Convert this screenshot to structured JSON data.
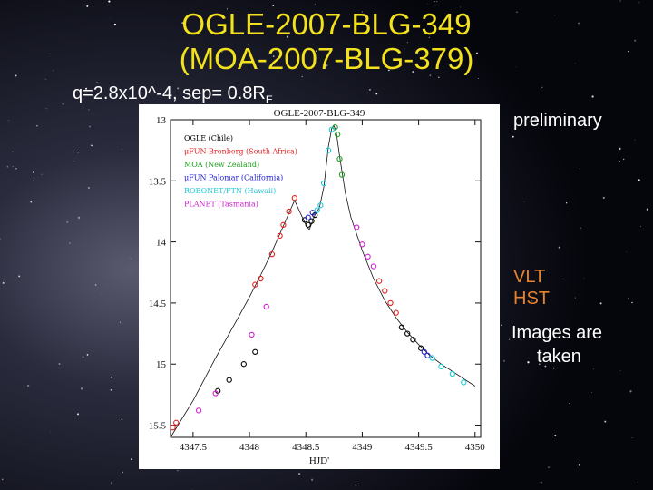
{
  "slide": {
    "title_line1": "OGLE-2007-BLG-349",
    "title_line2": "(MOA-2007-BLG-379)",
    "params_prefix": "q=2.8x10^-4,   sep= 0.8R",
    "params_sub": "E",
    "preliminary": "preliminary",
    "vlt": "VLT",
    "hst": "HST",
    "images_line1": "Images are",
    "images_line2": "taken",
    "title_color": "#f2e11c",
    "note_color": "#e8822c"
  },
  "chart_data": {
    "type": "scatter",
    "title": "OGLE-2007-BLG-349",
    "xlabel": "HJD'",
    "ylabel": "",
    "xlim": [
      4347.3,
      4350.05
    ],
    "ylim": [
      15.6,
      13.0
    ],
    "y_inverted": true,
    "x_ticks": [
      "4347.5",
      "4348",
      "4348.5",
      "4349",
      "4349.5",
      "4350"
    ],
    "y_ticks": [
      "13",
      "13.5",
      "14",
      "14.5",
      "15",
      "15.5"
    ],
    "legend": [
      {
        "name": "OGLE (Chile)",
        "color": "#000000"
      },
      {
        "name": "μFUN Bronberg (South Africa)",
        "color": "#e02020"
      },
      {
        "name": "MOA (New Zealand)",
        "color": "#20a020"
      },
      {
        "name": "μFUN Palomar (California)",
        "color": "#2020d0"
      },
      {
        "name": "ROBONET/FTN (Hawaii)",
        "color": "#20c8d8"
      },
      {
        "name": "PLANET (Tasmania)",
        "color": "#d020d0"
      }
    ],
    "model_curve": {
      "x": [
        4347.3,
        4347.5,
        4347.7,
        4347.9,
        4348.0,
        4348.1,
        4348.2,
        4348.3,
        4348.4,
        4348.5,
        4348.53,
        4348.58,
        4348.62,
        4348.66,
        4348.7,
        4348.73,
        4348.75,
        4348.77,
        4348.8,
        4348.85,
        4348.9,
        4349.0,
        4349.1,
        4349.2,
        4349.3,
        4349.4,
        4349.5,
        4349.6,
        4349.7,
        4349.8,
        4349.9,
        4350.0
      ],
      "y": [
        15.6,
        15.3,
        14.95,
        14.62,
        14.45,
        14.27,
        14.08,
        13.87,
        13.66,
        13.86,
        13.9,
        13.78,
        13.72,
        13.55,
        13.22,
        13.07,
        13.05,
        13.1,
        13.3,
        13.6,
        13.8,
        14.07,
        14.3,
        14.48,
        14.62,
        14.74,
        14.84,
        14.93,
        15.0,
        15.06,
        15.12,
        15.18
      ]
    },
    "series": [
      {
        "name": "OGLE (Chile)",
        "color": "#000000",
        "points": [
          [
            4347.72,
            15.22
          ],
          [
            4347.82,
            15.13
          ],
          [
            4347.95,
            15.0
          ],
          [
            4348.05,
            14.9
          ],
          [
            4348.49,
            13.82
          ],
          [
            4348.52,
            13.86
          ],
          [
            4348.55,
            13.83
          ],
          [
            4348.58,
            13.78
          ],
          [
            4349.35,
            14.7
          ],
          [
            4349.4,
            14.75
          ],
          [
            4349.45,
            14.8
          ],
          [
            4349.52,
            14.87
          ]
        ]
      },
      {
        "name": "μFUN Bronberg (South Africa)",
        "color": "#e02020",
        "points": [
          [
            4347.32,
            15.52
          ],
          [
            4347.35,
            15.48
          ],
          [
            4348.05,
            14.35
          ],
          [
            4348.1,
            14.3
          ],
          [
            4348.2,
            14.1
          ],
          [
            4348.27,
            13.95
          ],
          [
            4348.3,
            13.86
          ],
          [
            4348.35,
            13.75
          ],
          [
            4348.4,
            13.64
          ],
          [
            4349.15,
            14.32
          ],
          [
            4349.2,
            14.4
          ],
          [
            4349.25,
            14.5
          ],
          [
            4349.3,
            14.58
          ]
        ]
      },
      {
        "name": "MOA (New Zealand)",
        "color": "#20a020",
        "points": [
          [
            4348.76,
            13.06
          ],
          [
            4348.78,
            13.12
          ],
          [
            4348.8,
            13.32
          ],
          [
            4348.82,
            13.45
          ]
        ]
      },
      {
        "name": "μFUN Palomar (California)",
        "color": "#2020d0",
        "points": [
          [
            4348.52,
            13.8
          ],
          [
            4348.56,
            13.76
          ],
          [
            4349.55,
            14.9
          ],
          [
            4349.58,
            14.93
          ]
        ]
      },
      {
        "name": "ROBONET/FTN (Hawaii)",
        "color": "#20c8d8",
        "points": [
          [
            4348.6,
            13.74
          ],
          [
            4348.63,
            13.7
          ],
          [
            4348.66,
            13.52
          ],
          [
            4348.7,
            13.25
          ],
          [
            4348.73,
            13.08
          ],
          [
            4349.62,
            14.95
          ],
          [
            4349.7,
            15.02
          ],
          [
            4349.8,
            15.08
          ],
          [
            4349.9,
            15.15
          ]
        ]
      },
      {
        "name": "PLANET (Tasmania)",
        "color": "#d020d0",
        "points": [
          [
            4347.55,
            15.38
          ],
          [
            4347.7,
            15.24
          ],
          [
            4348.02,
            14.76
          ],
          [
            4348.15,
            14.53
          ],
          [
            4348.95,
            13.88
          ],
          [
            4349.0,
            14.02
          ],
          [
            4349.05,
            14.12
          ],
          [
            4349.1,
            14.2
          ]
        ]
      }
    ]
  }
}
